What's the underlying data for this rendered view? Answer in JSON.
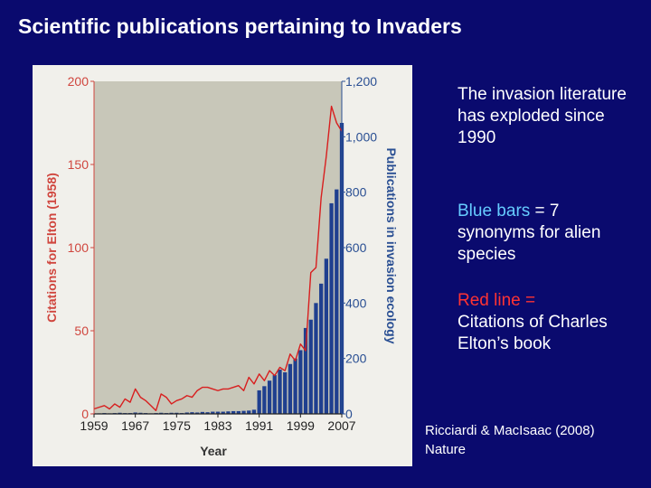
{
  "slide": {
    "title": "Scientific publications pertaining to Invaders",
    "text1": "The invasion literature has exploded since 1990",
    "text2_highlight": "Blue bars",
    "text2_rest": " = 7 synonyms for alien species",
    "text3_highlight": "Red line =",
    "text3_rest": "Citations of Charles Elton’s book",
    "citation_line1": "Ricciardi & MacIsaac (2008)",
    "citation_line2": "Nature"
  },
  "chart_data": {
    "type": "bar",
    "xlabel": "Year",
    "ylabel_left": "Citations for Elton (1958)",
    "ylabel_right": "Publications in invasion ecology",
    "x_ticks": [
      "1959",
      "1967",
      "1975",
      "1983",
      "1991",
      "1999",
      "2007"
    ],
    "y_left_ticks": [
      "0",
      "50",
      "100",
      "150",
      "200"
    ],
    "y_right_ticks": [
      "0",
      "200",
      "400",
      "600",
      "800",
      "1,000",
      "1,200"
    ],
    "ylim_left": [
      0,
      200
    ],
    "ylim_right": [
      0,
      1200
    ],
    "xlim": [
      1959,
      2007
    ],
    "colors": {
      "bars": "#1f3f8f",
      "line": "#d81e1e",
      "plot_bg": "#c8c7b9",
      "tick_red": "#d0463e",
      "tick_blue": "#2a4f93"
    },
    "series": [
      {
        "name": "Blue bars",
        "axis": "right",
        "x": [
          1959,
          1960,
          1961,
          1962,
          1963,
          1964,
          1965,
          1966,
          1967,
          1968,
          1969,
          1970,
          1971,
          1972,
          1973,
          1974,
          1975,
          1976,
          1977,
          1978,
          1979,
          1980,
          1981,
          1982,
          1983,
          1984,
          1985,
          1986,
          1987,
          1988,
          1989,
          1990,
          1991,
          1992,
          1993,
          1994,
          1995,
          1996,
          1997,
          1998,
          1999,
          2000,
          2001,
          2002,
          2003,
          2004,
          2005,
          2006,
          2007
        ],
        "values": [
          2,
          2,
          3,
          2,
          3,
          4,
          3,
          3,
          5,
          4,
          3,
          2,
          3,
          4,
          3,
          4,
          4,
          3,
          5,
          6,
          5,
          7,
          6,
          8,
          8,
          8,
          9,
          10,
          10,
          11,
          12,
          15,
          85,
          100,
          120,
          140,
          160,
          150,
          180,
          200,
          230,
          310,
          340,
          400,
          470,
          560,
          760,
          810,
          1050
        ]
      },
      {
        "name": "Red line",
        "axis": "left",
        "x": [
          1959,
          1960,
          1961,
          1962,
          1963,
          1964,
          1965,
          1966,
          1967,
          1968,
          1969,
          1970,
          1971,
          1972,
          1973,
          1974,
          1975,
          1976,
          1977,
          1978,
          1979,
          1980,
          1981,
          1982,
          1983,
          1984,
          1985,
          1986,
          1987,
          1988,
          1989,
          1990,
          1991,
          1992,
          1993,
          1994,
          1995,
          1996,
          1997,
          1998,
          1999,
          2000,
          2001,
          2002,
          2003,
          2004,
          2005,
          2006,
          2007
        ],
        "values": [
          3,
          4,
          5,
          3,
          6,
          4,
          9,
          7,
          15,
          10,
          8,
          5,
          2,
          12,
          10,
          6,
          8,
          9,
          11,
          10,
          14,
          16,
          16,
          15,
          14,
          15,
          15,
          16,
          17,
          14,
          22,
          18,
          24,
          20,
          26,
          23,
          28,
          26,
          36,
          32,
          42,
          38,
          85,
          88,
          130,
          155,
          185,
          175,
          170
        ]
      }
    ]
  }
}
